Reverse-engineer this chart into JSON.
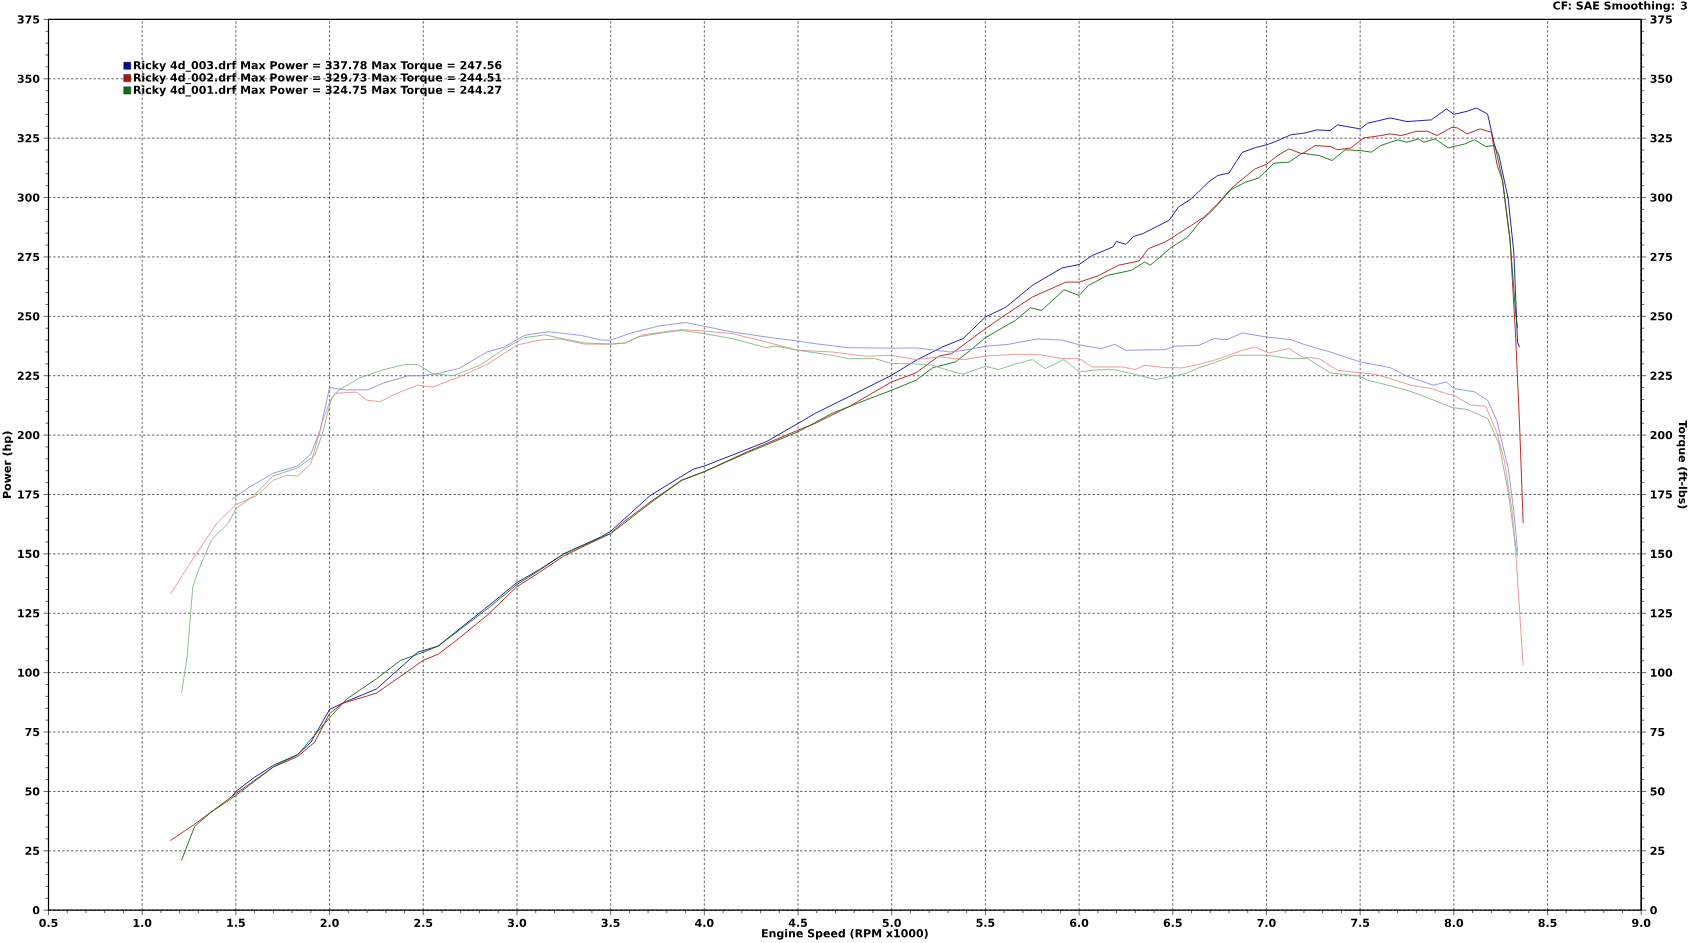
{
  "chart_data": {
    "type": "line",
    "xlabel": "Engine Speed (RPM x1000)",
    "ylabel": "Power (hp)",
    "y2label": "Torque (ft-lbs)",
    "annotations": [
      "CF: SAE  Smoothing: 3"
    ],
    "xlim": [
      0.5,
      9.0
    ],
    "xticks": [
      0.5,
      {
        "value": 1,
        "label": "1.0"
      },
      1.5,
      {
        "value": 2,
        "label": "2.0"
      },
      2.5,
      {
        "value": 3,
        "label": "3.0"
      },
      3.5,
      {
        "value": 4,
        "label": "4.0"
      },
      4.5,
      {
        "value": 5,
        "label": "5.0"
      },
      5.5,
      {
        "value": 6,
        "label": "6.0"
      },
      6.5,
      {
        "value": 7,
        "label": "7.0"
      },
      7.5,
      {
        "value": 8,
        "label": "8.0"
      },
      8.5,
      {
        "value": 9,
        "label": "9.0"
      }
    ],
    "ylim": [
      0,
      375
    ],
    "yticks": [
      0,
      25,
      50,
      75,
      100,
      125,
      150,
      175,
      200,
      225,
      250,
      275,
      300,
      325,
      350,
      375
    ],
    "y2lim": [
      0,
      375
    ],
    "y2ticks": [
      0,
      25,
      50,
      75,
      100,
      125,
      150,
      175,
      200,
      225,
      250,
      275,
      300,
      325,
      350,
      375
    ],
    "grid": true,
    "legend": "top left",
    "line_style": "solid",
    "series": [
      {
        "name": "Ricky 4d_003.drf Max Power = 337.78 Max Torque = 247.56",
        "color": "#0a0a9a",
        "x": [
          1.48,
          1.5,
          1.6,
          1.7,
          1.83,
          1.9,
          2.0,
          2.09,
          2.25,
          2.47,
          2.58,
          2.68,
          2.84,
          3.0,
          3.12,
          3.25,
          3.45,
          3.5,
          3.71,
          3.78,
          3.94,
          4.0,
          4.15,
          4.33,
          4.5,
          4.59,
          4.77,
          5.0,
          5.13,
          5.27,
          5.38,
          5.5,
          5.61,
          5.75,
          5.84,
          5.91,
          6.0,
          6.07,
          6.18,
          6.2,
          6.25,
          6.29,
          6.34,
          6.41,
          6.48,
          6.53,
          6.6,
          6.69,
          6.74,
          6.8,
          6.87,
          6.94,
          7.0,
          7.04,
          7.13,
          7.2,
          7.27,
          7.34,
          7.38,
          7.5,
          7.54,
          7.66,
          7.75,
          7.88,
          7.96,
          8.0,
          8.07,
          8.12,
          8.18,
          8.22,
          8.24,
          8.29,
          8.32,
          8.34,
          8.35
        ],
        "values": [
          48,
          50,
          56,
          61,
          65.5,
          70.7,
          84.5,
          87.9,
          93.1,
          108.6,
          111.2,
          117.6,
          127.6,
          137.9,
          143.4,
          150,
          157.2,
          159.5,
          174.5,
          177.9,
          185.6,
          187,
          191.6,
          197.2,
          204.9,
          209.1,
          216.1,
          225.2,
          231.5,
          237.1,
          240.6,
          249.7,
          253.9,
          263,
          267.2,
          270.4,
          271.8,
          275.6,
          279.2,
          281.5,
          280.3,
          283.6,
          284.8,
          287.6,
          290.4,
          296,
          299.5,
          306.5,
          309.3,
          310.3,
          319,
          321,
          322.2,
          323.3,
          326.4,
          327.1,
          328.5,
          328.2,
          330.6,
          328.9,
          331.3,
          333.5,
          332,
          332.7,
          337.3,
          335,
          336.3,
          337.7,
          335.2,
          321,
          318,
          299.5,
          277,
          239,
          237
        ]
      },
      {
        "name": "Ricky 4d_002.drf Max Power = 329.73 Max Torque = 244.51",
        "color": "#b01414",
        "x": [
          1.15,
          1.28,
          1.5,
          1.7,
          1.83,
          1.92,
          2.0,
          2.07,
          2.18,
          2.25,
          2.36,
          2.5,
          2.58,
          2.68,
          2.84,
          3.0,
          3.12,
          3.25,
          3.34,
          3.5,
          3.56,
          3.71,
          3.88,
          4.0,
          4.23,
          4.5,
          4.59,
          4.77,
          5.0,
          5.13,
          5.25,
          5.32,
          5.5,
          5.59,
          5.75,
          5.93,
          6.0,
          6.1,
          6.21,
          6.32,
          6.37,
          6.46,
          6.53,
          6.6,
          6.67,
          6.74,
          6.81,
          6.89,
          6.94,
          7.0,
          7.06,
          7.12,
          7.19,
          7.26,
          7.34,
          7.38,
          7.45,
          7.52,
          7.61,
          7.66,
          7.72,
          7.8,
          7.86,
          7.91,
          7.99,
          8.02,
          8.07,
          8.14,
          8.2,
          8.23,
          8.26,
          8.3,
          8.33,
          8.35,
          8.37
        ],
        "values": [
          29.3,
          36.2,
          49.1,
          60.3,
          64.7,
          70.7,
          82.8,
          87.1,
          89.7,
          91.4,
          97.4,
          105.2,
          107.8,
          113.8,
          124.1,
          136.2,
          142.2,
          149.1,
          152.6,
          158.6,
          162.9,
          171.8,
          181.1,
          184.6,
          193,
          202.1,
          204.9,
          211.9,
          222.4,
          226.2,
          233.2,
          234.3,
          244.8,
          249.7,
          258.1,
          264.4,
          264.4,
          267,
          271.5,
          273.3,
          278.5,
          281.3,
          284.8,
          288.3,
          292,
          297.4,
          303.7,
          309,
          312.1,
          314,
          317.7,
          320.5,
          318.4,
          321.9,
          321.5,
          320.1,
          320.9,
          325.1,
          326.1,
          326.8,
          326.1,
          327.9,
          327.9,
          326.1,
          329.6,
          329.3,
          326.8,
          328.9,
          327.5,
          314,
          307,
          282,
          241,
          206,
          163
        ]
      },
      {
        "name": "Ricky 4d_001.drf Max Power = 324.75 Max Torque = 244.27",
        "color": "#106e10",
        "x": [
          1.21,
          1.28,
          1.37,
          1.5,
          1.7,
          1.83,
          2.0,
          2.09,
          2.25,
          2.38,
          2.5,
          2.58,
          2.68,
          2.84,
          3.0,
          3.12,
          3.25,
          3.5,
          3.56,
          3.71,
          3.88,
          4.0,
          4.23,
          4.5,
          4.68,
          4.86,
          5.0,
          5.13,
          5.22,
          5.34,
          5.42,
          5.5,
          5.66,
          5.74,
          5.8,
          5.92,
          6.0,
          6.05,
          6.15,
          6.28,
          6.35,
          6.38,
          6.49,
          6.58,
          6.64,
          6.72,
          6.81,
          6.89,
          6.96,
          7.04,
          7.12,
          7.19,
          7.28,
          7.35,
          7.42,
          7.5,
          7.56,
          7.61,
          7.7,
          7.75,
          7.81,
          7.84,
          7.9,
          7.97,
          8.06,
          8.11,
          8.17,
          8.22,
          8.26,
          8.3,
          8.33,
          8.34
        ],
        "values": [
          21,
          35.3,
          41.4,
          48.3,
          60.3,
          65.5,
          81,
          88.8,
          97.4,
          105.2,
          108.6,
          111.2,
          117.2,
          126.7,
          137.1,
          143.1,
          150,
          158.6,
          162.1,
          171.3,
          181,
          184.6,
          192.6,
          201.4,
          209.1,
          214.7,
          218.9,
          223.1,
          228.4,
          230.8,
          235.7,
          241,
          248.3,
          253.6,
          252.5,
          261.2,
          258.8,
          263,
          267.2,
          269.4,
          272.9,
          271.5,
          278.9,
          283.4,
          289.3,
          295.3,
          303.3,
          306.5,
          308.3,
          314.5,
          314.9,
          318.7,
          317.7,
          315.6,
          320.1,
          319.8,
          319.1,
          321.9,
          324.3,
          323.3,
          324.7,
          323.3,
          324.7,
          320.9,
          322.6,
          324.3,
          321.5,
          321.9,
          307,
          282,
          251,
          245
        ]
      },
      {
        "color": "#8c8ce6",
        "axis": "y2",
        "x": [
          1.48,
          1.57,
          1.7,
          1.83,
          1.9,
          1.95,
          2.0,
          2.09,
          2.2,
          2.29,
          2.42,
          2.5,
          2.58,
          2.69,
          2.84,
          2.93,
          3.04,
          3.12,
          3.17,
          3.34,
          3.45,
          3.5,
          3.61,
          3.76,
          3.9,
          4.0,
          4.15,
          4.33,
          4.5,
          4.59,
          4.77,
          5.0,
          5.13,
          5.31,
          5.39,
          5.5,
          5.62,
          5.78,
          5.91,
          6.0,
          6.12,
          6.19,
          6.25,
          6.46,
          6.51,
          6.64,
          6.72,
          6.79,
          6.87,
          7.0,
          7.13,
          7.2,
          7.34,
          7.5,
          7.66,
          7.75,
          7.89,
          7.96,
          8.0,
          8.11,
          8.18,
          8.23,
          8.29,
          8.32,
          8.34
        ],
        "values": [
          173,
          178,
          184,
          187,
          192,
          202,
          220,
          219,
          219,
          222,
          225,
          225,
          226,
          228,
          235,
          237,
          242,
          243,
          243.5,
          242,
          240,
          240,
          243,
          246,
          247.4,
          245.8,
          243.4,
          241.3,
          239.6,
          238.5,
          236.8,
          236.6,
          236.7,
          235,
          235.7,
          237.4,
          238.2,
          240.5,
          240,
          238,
          236.4,
          238.2,
          235.7,
          236,
          237.4,
          237.8,
          240.6,
          240.2,
          243,
          241.3,
          240.2,
          238.2,
          235,
          230.8,
          228.4,
          224.8,
          221,
          222.4,
          219.6,
          218.2,
          214.7,
          206,
          186,
          168,
          151
        ]
      },
      {
        "color": "#e88e8e",
        "axis": "y2",
        "x": [
          1.15,
          1.28,
          1.4,
          1.5,
          1.61,
          1.7,
          1.77,
          1.83,
          1.9,
          1.96,
          2.0,
          2.03,
          2.14,
          2.2,
          2.27,
          2.36,
          2.47,
          2.55,
          2.68,
          2.84,
          3.0,
          3.12,
          3.23,
          3.36,
          3.5,
          3.58,
          3.67,
          3.78,
          3.88,
          4.0,
          4.15,
          4.33,
          4.5,
          4.68,
          4.86,
          5.0,
          5.13,
          5.25,
          5.39,
          5.5,
          5.66,
          5.78,
          5.91,
          6.0,
          6.07,
          6.23,
          6.3,
          6.35,
          6.46,
          6.55,
          6.64,
          6.72,
          6.81,
          6.87,
          6.94,
          7.01,
          7.12,
          7.19,
          7.28,
          7.38,
          7.5,
          7.58,
          7.66,
          7.77,
          7.88,
          7.97,
          8.0,
          8.09,
          8.17,
          8.23,
          8.27,
          8.31,
          8.33,
          8.37
        ],
        "values": [
          133,
          149,
          163,
          170.7,
          174.5,
          181,
          183.1,
          182.8,
          187.9,
          205.2,
          213.8,
          217.6,
          218.1,
          214.7,
          214.1,
          217.6,
          221,
          220.2,
          224.1,
          229.7,
          237.9,
          240,
          240.5,
          238.3,
          238.3,
          238.8,
          242.2,
          243.4,
          244.4,
          243.8,
          242.7,
          239.2,
          235.7,
          235,
          233.2,
          233.6,
          231.8,
          232.9,
          231.8,
          233.3,
          234,
          234,
          232.2,
          232.2,
          228.7,
          228.7,
          227.6,
          229.4,
          228.4,
          228.3,
          229.8,
          231.5,
          233.9,
          235.7,
          237.1,
          234.6,
          236.4,
          232.9,
          232.2,
          227.3,
          226.2,
          225.6,
          223.8,
          221,
          219.6,
          217.2,
          216.8,
          212.6,
          212.2,
          201,
          189,
          168.6,
          151,
          103
        ]
      },
      {
        "color": "#84b884",
        "axis": "y2",
        "x": [
          1.21,
          1.24,
          1.27,
          1.3,
          1.37,
          1.46,
          1.5,
          1.59,
          1.7,
          1.83,
          1.92,
          1.96,
          2.01,
          2.05,
          2.16,
          2.29,
          2.4,
          2.47,
          2.55,
          2.66,
          2.8,
          2.93,
          3.04,
          3.15,
          3.25,
          3.36,
          3.5,
          3.58,
          3.65,
          3.78,
          3.88,
          4.0,
          4.15,
          4.33,
          4.38,
          4.5,
          4.68,
          4.77,
          4.91,
          5.0,
          5.1,
          5.22,
          5.27,
          5.38,
          5.5,
          5.57,
          5.66,
          5.75,
          5.82,
          5.92,
          6.0,
          6.1,
          6.19,
          6.28,
          6.41,
          6.5,
          6.57,
          6.64,
          6.72,
          6.83,
          7.0,
          7.13,
          7.22,
          7.34,
          7.5,
          7.54,
          7.65,
          7.75,
          7.84,
          7.99,
          8.07,
          8.18,
          8.24,
          8.29,
          8.33,
          8.34
        ],
        "values": [
          91.4,
          106.9,
          136.2,
          143.1,
          156,
          162.9,
          169,
          174.1,
          182.8,
          186.2,
          191.4,
          200,
          215.5,
          219,
          224.1,
          227.6,
          229.7,
          229.7,
          225.9,
          225,
          229.3,
          236.2,
          241,
          242.2,
          240.5,
          238.8,
          238.3,
          238.8,
          241.4,
          243.1,
          244.1,
          242.7,
          240.6,
          236.8,
          237.5,
          235.7,
          233.6,
          232.2,
          232.2,
          230.1,
          230.1,
          229.4,
          228,
          225.6,
          229,
          227.6,
          229.9,
          231.8,
          228,
          231.8,
          226.6,
          227.5,
          227.5,
          225.9,
          223.4,
          224.8,
          225.9,
          228.4,
          230.4,
          233.6,
          233.6,
          232.2,
          232.2,
          226.2,
          224.8,
          223.1,
          221,
          218.9,
          216.4,
          211.6,
          210.8,
          207,
          196.5,
          176,
          153,
          149
        ]
      }
    ]
  }
}
